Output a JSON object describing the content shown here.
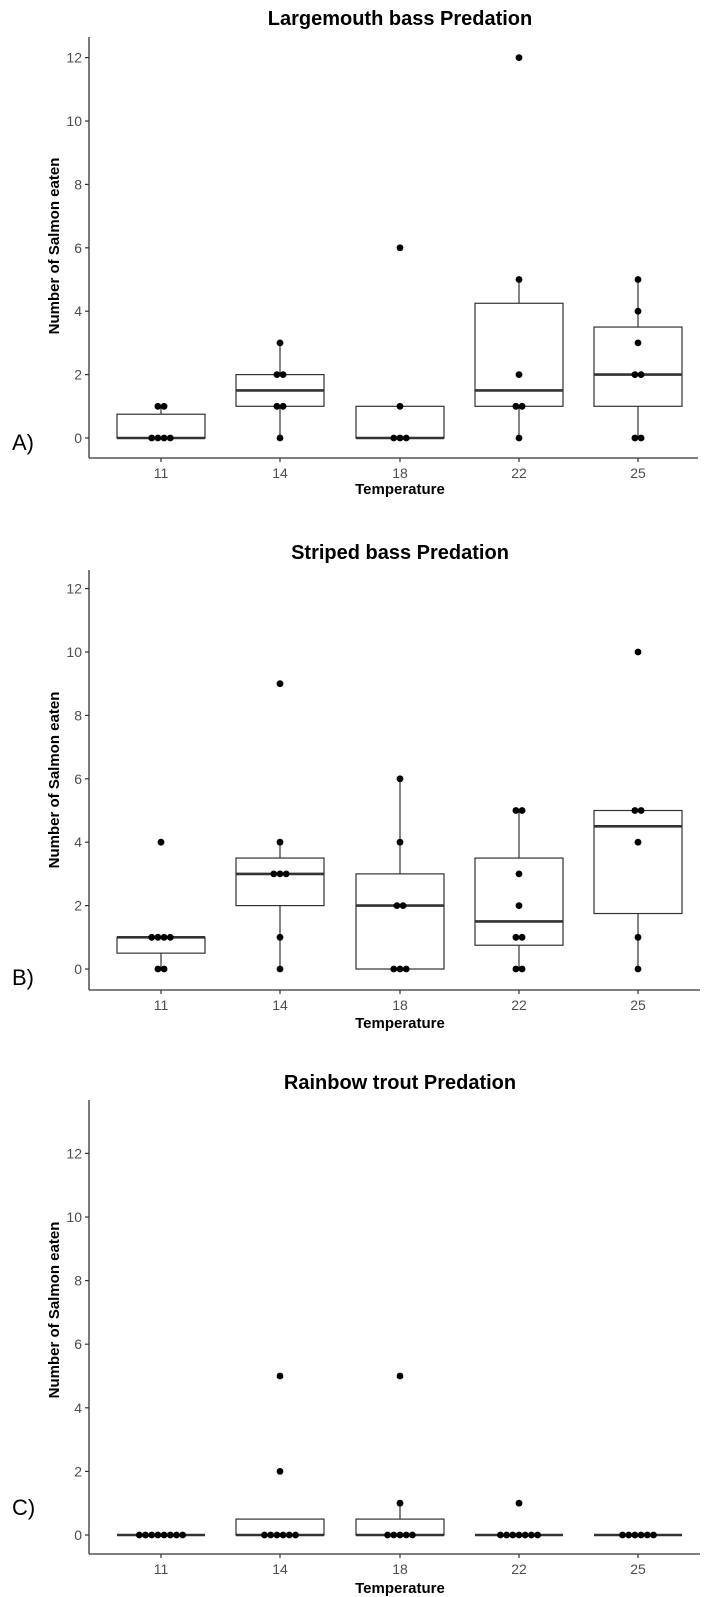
{
  "chart_data": [
    {
      "type": "box",
      "panel_label": "A)",
      "title": "Largemouth bass Predation",
      "xlabel": "Temperature",
      "ylabel": "Number of Salmon eaten",
      "categories": [
        "11",
        "14",
        "18",
        "22",
        "25"
      ],
      "ylim": [
        0,
        12
      ],
      "yticks": [
        0,
        2,
        4,
        6,
        8,
        10,
        12
      ],
      "grid": false,
      "boxes": [
        {
          "category": "11",
          "q1": 0,
          "median": 0,
          "q3": 0.75,
          "whisker_low": 0,
          "whisker_high": 1,
          "points": [
            0,
            0,
            0,
            0,
            1,
            1
          ]
        },
        {
          "category": "14",
          "q1": 1,
          "median": 1.5,
          "q3": 2,
          "whisker_low": 0,
          "whisker_high": 3,
          "points": [
            0,
            1,
            1,
            2,
            2,
            3
          ]
        },
        {
          "category": "18",
          "q1": 0,
          "median": 0,
          "q3": 1,
          "whisker_low": 0,
          "whisker_high": 1,
          "points": [
            0,
            0,
            0,
            1,
            6
          ]
        },
        {
          "category": "22",
          "q1": 1,
          "median": 1.5,
          "q3": 4.25,
          "whisker_low": 0,
          "whisker_high": 5,
          "points": [
            0,
            1,
            1,
            2,
            5,
            12
          ]
        },
        {
          "category": "25",
          "q1": 1,
          "median": 2,
          "q3": 3.5,
          "whisker_low": 0,
          "whisker_high": 5,
          "points": [
            0,
            0,
            2,
            2,
            3,
            4,
            5
          ]
        }
      ]
    },
    {
      "type": "box",
      "panel_label": "B)",
      "title": "Striped bass Predation",
      "xlabel": "Temperature",
      "ylabel": "Number of Salmon eaten",
      "categories": [
        "11",
        "14",
        "18",
        "22",
        "25"
      ],
      "ylim": [
        0,
        12
      ],
      "yticks": [
        0,
        2,
        4,
        6,
        8,
        10,
        12
      ],
      "grid": false,
      "boxes": [
        {
          "category": "11",
          "q1": 0.5,
          "median": 1,
          "q3": 1,
          "whisker_low": 0,
          "whisker_high": 1,
          "points": [
            0,
            0,
            1,
            1,
            1,
            1,
            4
          ]
        },
        {
          "category": "14",
          "q1": 2,
          "median": 3,
          "q3": 3.5,
          "whisker_low": 0,
          "whisker_high": 4,
          "points": [
            0,
            1,
            3,
            3,
            3,
            4,
            9
          ]
        },
        {
          "category": "18",
          "q1": 0,
          "median": 2,
          "q3": 3,
          "whisker_low": 0,
          "whisker_high": 6,
          "points": [
            0,
            0,
            0,
            2,
            2,
            4,
            6
          ]
        },
        {
          "category": "22",
          "q1": 0.75,
          "median": 1.5,
          "q3": 3.5,
          "whisker_low": 0,
          "whisker_high": 5,
          "points": [
            0,
            0,
            1,
            1,
            2,
            3,
            5,
            5
          ]
        },
        {
          "category": "25",
          "q1": 1.75,
          "median": 4.5,
          "q3": 5,
          "whisker_low": 0,
          "whisker_high": 5,
          "points": [
            0,
            1,
            4,
            5,
            5,
            10
          ]
        }
      ]
    },
    {
      "type": "box",
      "panel_label": "C)",
      "title": "Rainbow trout Predation",
      "xlabel": "Temperature",
      "ylabel": "Number of Salmon eaten",
      "categories": [
        "11",
        "14",
        "18",
        "22",
        "25"
      ],
      "ylim": [
        0,
        12
      ],
      "yticks": [
        0,
        2,
        4,
        6,
        8,
        10,
        12
      ],
      "grid": false,
      "boxes": [
        {
          "category": "11",
          "q1": 0,
          "median": 0,
          "q3": 0,
          "whisker_low": 0,
          "whisker_high": 0,
          "points": [
            0,
            0,
            0,
            0,
            0,
            0,
            0,
            0
          ]
        },
        {
          "category": "14",
          "q1": 0,
          "median": 0,
          "q3": 0.5,
          "whisker_low": 0,
          "whisker_high": 0.5,
          "points": [
            0,
            0,
            0,
            0,
            0,
            0,
            2,
            5
          ]
        },
        {
          "category": "18",
          "q1": 0,
          "median": 0,
          "q3": 0.5,
          "whisker_low": 0,
          "whisker_high": 1,
          "points": [
            0,
            0,
            0,
            0,
            0,
            1,
            5
          ]
        },
        {
          "category": "22",
          "q1": 0,
          "median": 0,
          "q3": 0,
          "whisker_low": 0,
          "whisker_high": 0,
          "points": [
            0,
            0,
            0,
            0,
            0,
            0,
            0,
            1
          ]
        },
        {
          "category": "25",
          "q1": 0,
          "median": 0,
          "q3": 0,
          "whisker_low": 0,
          "whisker_high": 0,
          "points": [
            0,
            0,
            0,
            0,
            0,
            0
          ]
        }
      ]
    }
  ]
}
